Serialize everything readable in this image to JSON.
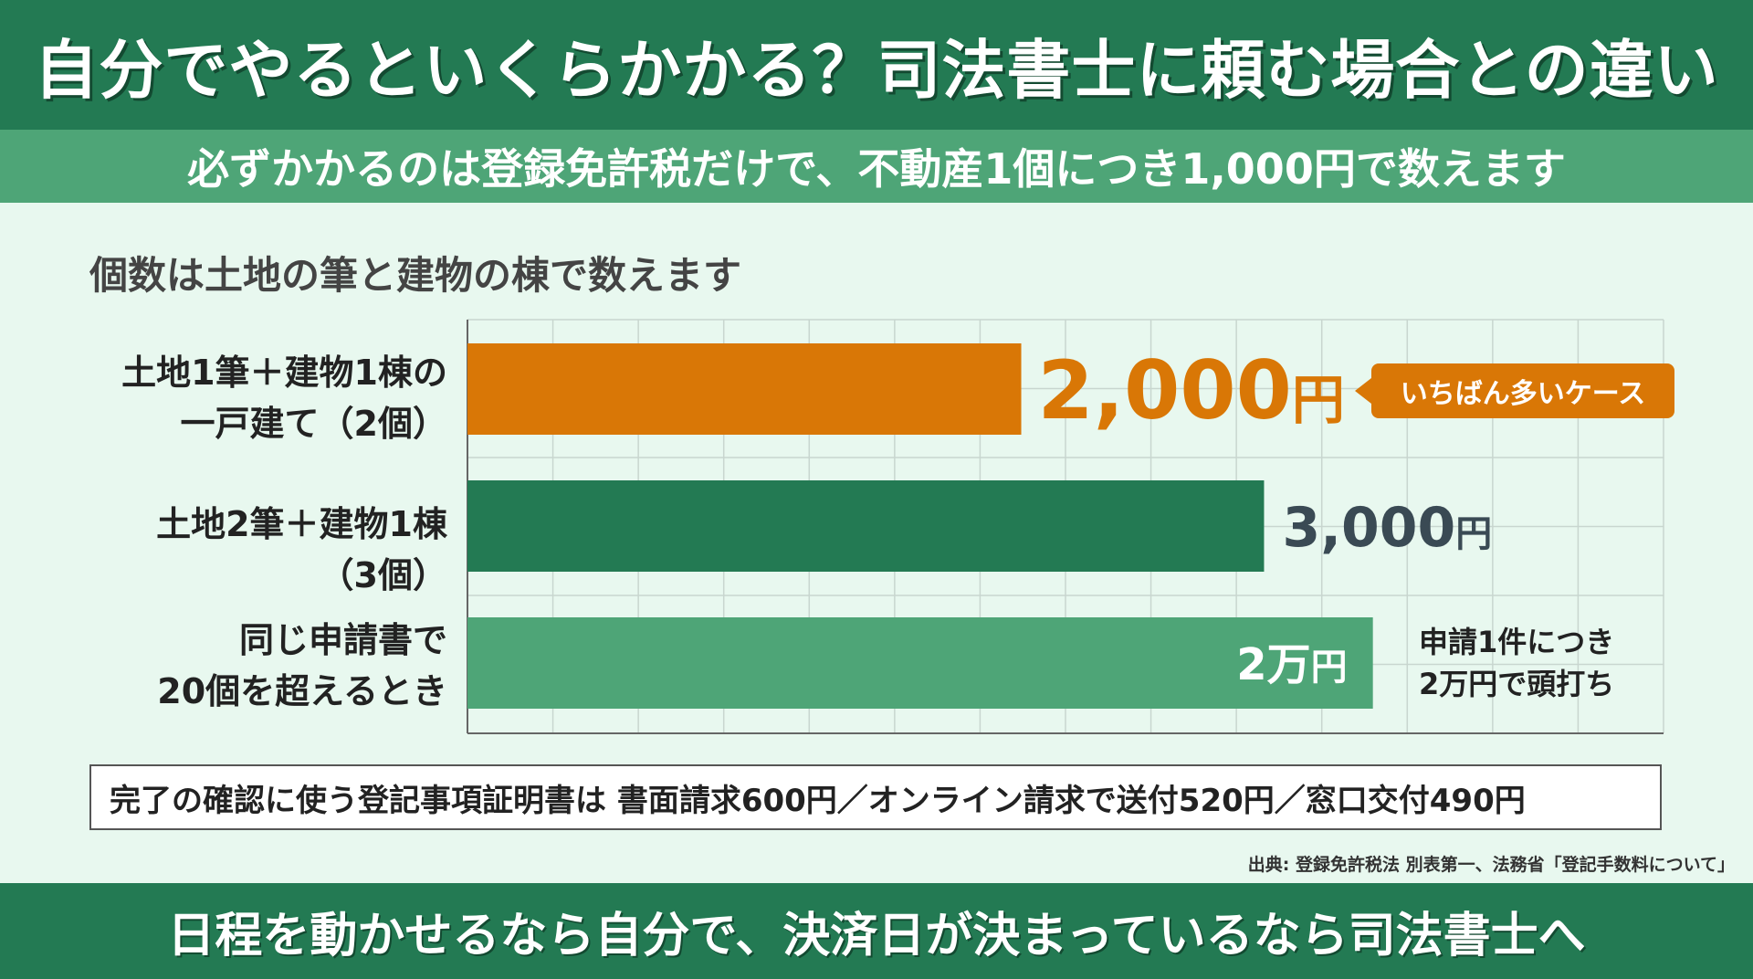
{
  "header": {
    "title": "自分でやるといくらかかる？司法書士に頼む場合との違い",
    "subtitle": "必ずかかるのは登録免許税だけで、不動産1個につき1,000円で数えます"
  },
  "section_heading": "個数は土地の筆と建物の棟で数えます",
  "chart_data": {
    "type": "bar",
    "orientation": "horizontal",
    "categories": [
      [
        "土地1筆＋建物1棟の",
        "一戸建て（2個）"
      ],
      [
        "土地2筆＋建物1棟",
        "（3個）"
      ],
      [
        "同じ申請書で",
        "20個を超えるとき"
      ]
    ],
    "values": [
      2000,
      3000,
      20000
    ],
    "bar_fill": [
      0.463,
      0.666,
      0.757
    ],
    "value_labels": [
      {
        "number": "2,000",
        "unit": "円"
      },
      {
        "number": "3,000",
        "unit": "円"
      },
      {
        "number": "2万",
        "unit": "円"
      }
    ],
    "colors": [
      "#d97706",
      "#237a53",
      "#4ea577"
    ],
    "grid": true,
    "grid_columns": 14,
    "grid_rows": 6
  },
  "badge": "いちばん多いケース",
  "cap_note": [
    "申請1件につき",
    "2万円で頭打ち"
  ],
  "info_box": "完了の確認に使う登記事項証明書は 書面請求600円／オンライン請求で送付520円／窓口交付490円",
  "source": "出典: 登録免許税法 別表第一、法務省「登記手数料について」",
  "footer": "日程を動かせるなら自分で、決済日が決まっているなら司法書士へ",
  "colors": {
    "header": "#237a53",
    "subheader": "#4ea577",
    "background": "#e8f8ef",
    "accent": "#d97706",
    "value_text": "#3a4a54"
  }
}
